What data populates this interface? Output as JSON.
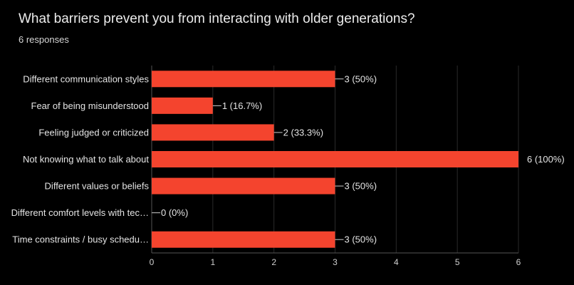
{
  "header": {
    "title": "What barriers prevent you from interacting with older generations?",
    "subtitle": "6 responses"
  },
  "colors": {
    "bar": "#f4442e",
    "background": "#000000"
  },
  "chart_data": {
    "type": "bar",
    "orientation": "horizontal",
    "title": "What barriers prevent you from interacting with older generations?",
    "subtitle": "6 responses",
    "categories": [
      "Different communication styles",
      "Fear of being misunderstood",
      "Feeling judged or criticized",
      "Not knowing what to talk about",
      "Different values or beliefs",
      "Different comfort levels with tec…",
      "Time constraints / busy schedu…"
    ],
    "values": [
      3,
      1,
      2,
      6,
      3,
      0,
      3
    ],
    "value_labels": [
      "3 (50%)",
      "1 (16.7%)",
      "2 (33.3%)",
      "6 (100%)",
      "3 (50%)",
      "0 (0%)",
      "3 (50%)"
    ],
    "xlim": [
      0,
      6
    ],
    "xticks": [
      "0",
      "1",
      "2",
      "3",
      "4",
      "5",
      "6"
    ],
    "grid": true,
    "legend": "none"
  }
}
